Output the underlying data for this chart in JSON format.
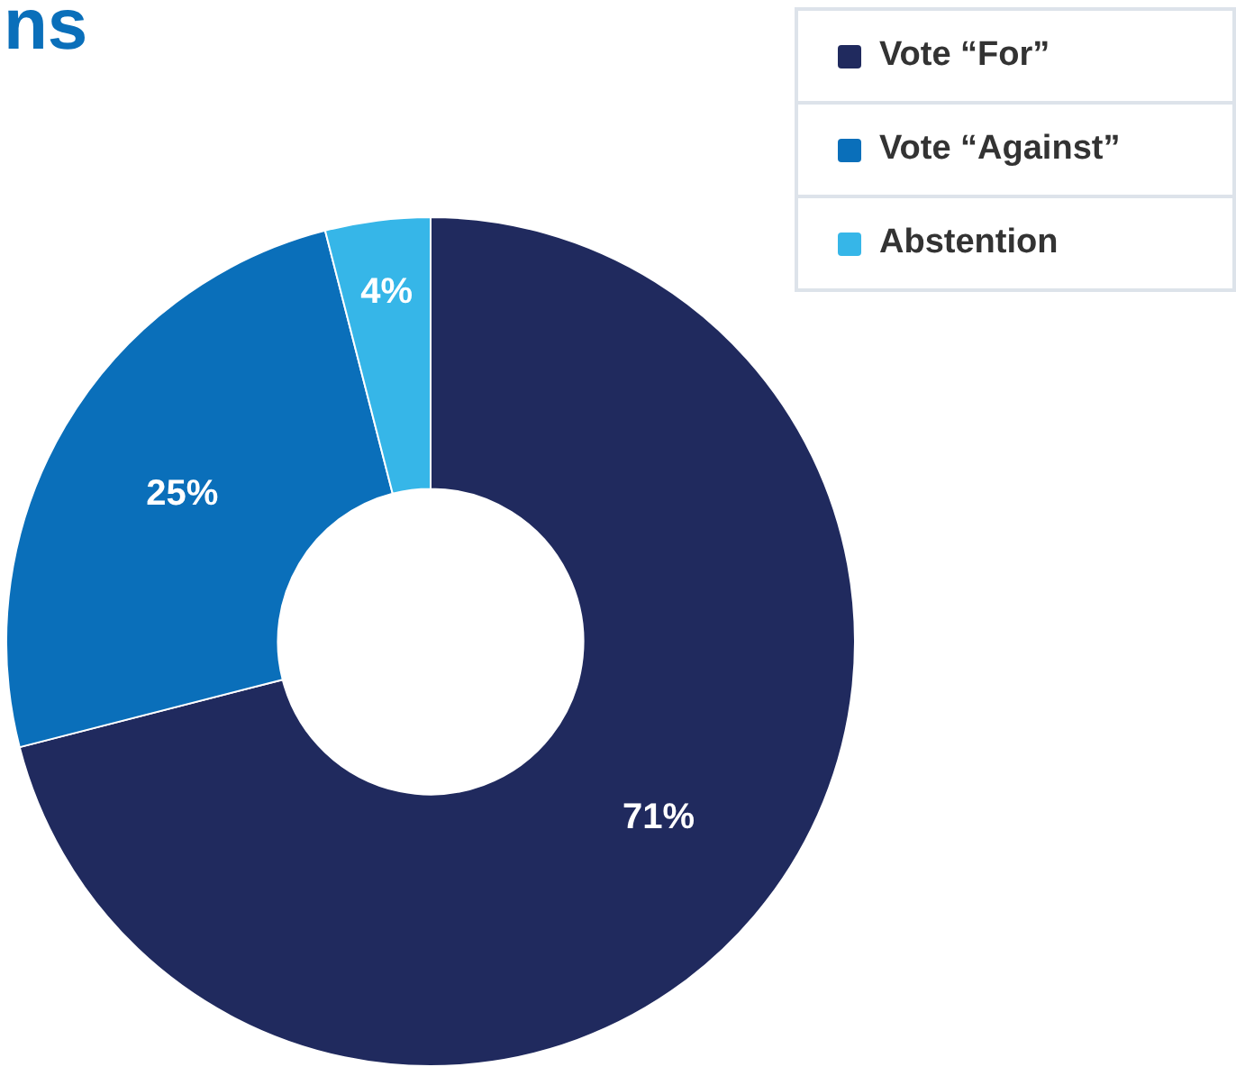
{
  "chart_data": {
    "type": "donut",
    "title": "ns",
    "categories": [
      "Vote “For”",
      "Vote “Against”",
      "Abstention"
    ],
    "values": [
      71,
      25,
      4
    ],
    "colors": [
      "#202a5e",
      "#0a6fba",
      "#36b6e8"
    ],
    "value_labels": [
      "71%",
      "25%",
      "4%"
    ],
    "legend": "top right"
  }
}
